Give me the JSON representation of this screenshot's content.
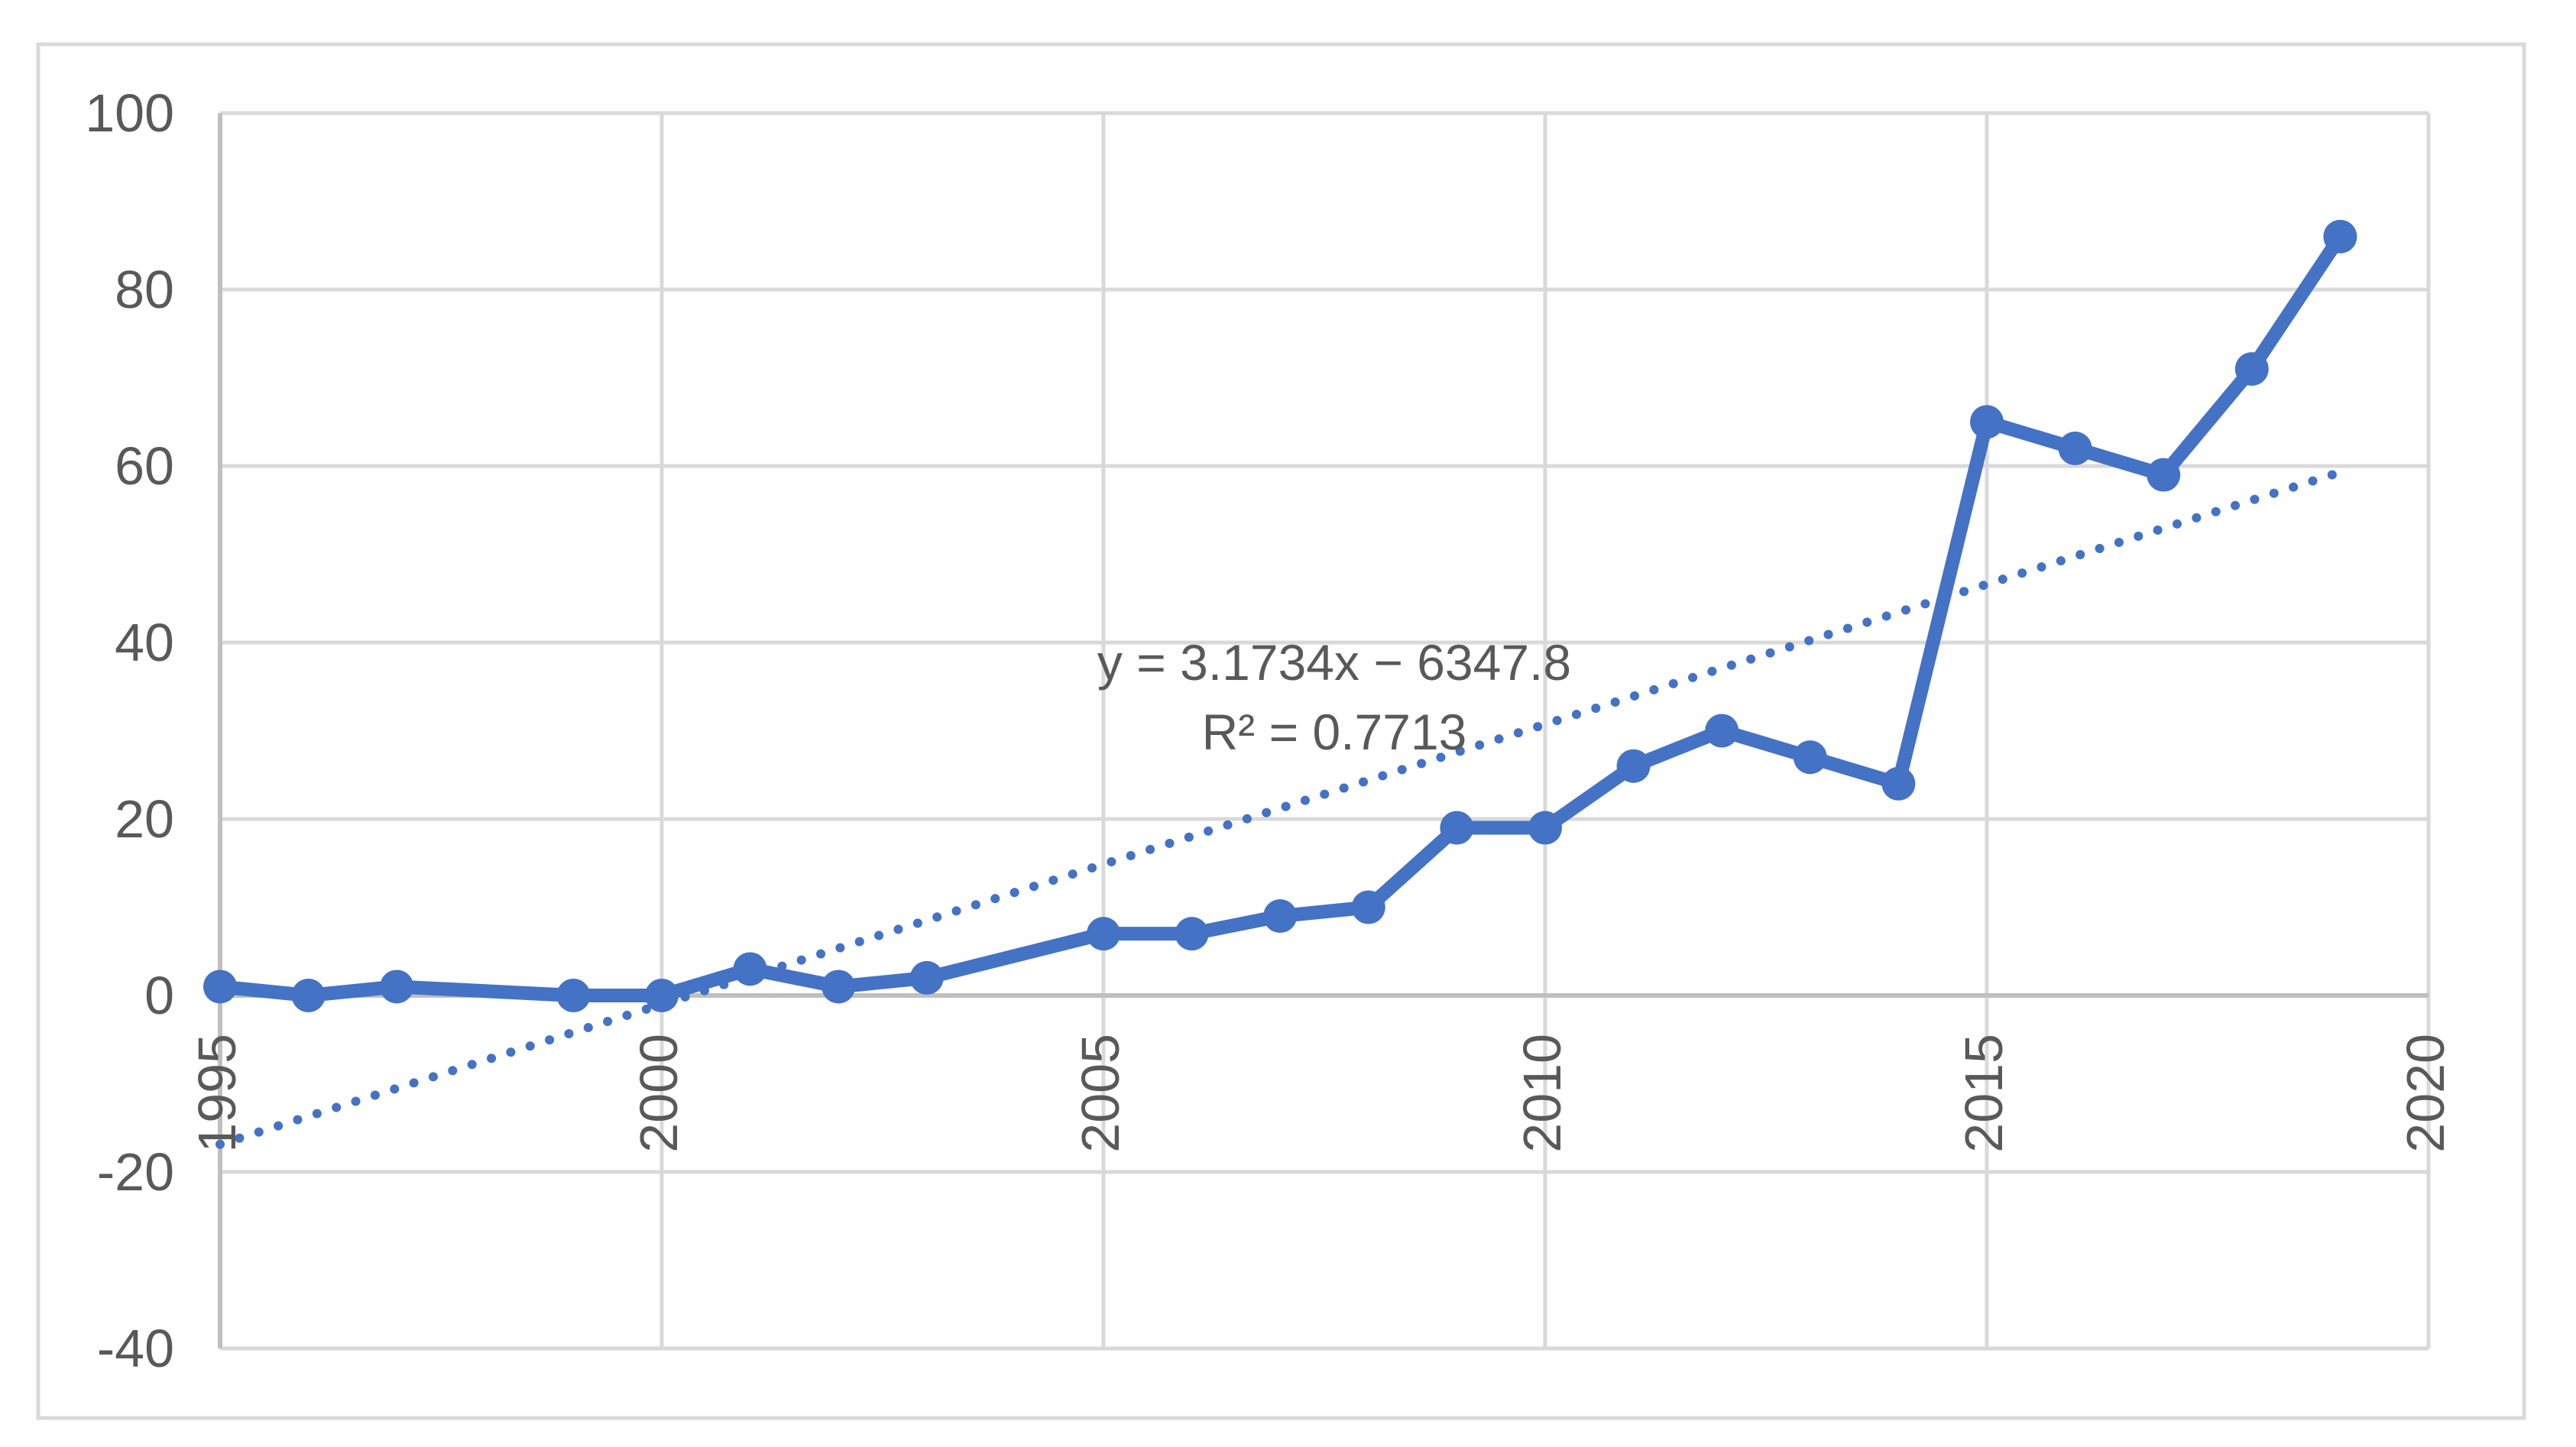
{
  "chart_data": {
    "type": "line",
    "title": "",
    "xlabel": "",
    "ylabel": "",
    "legend": "none",
    "grid": true,
    "x": [
      1995,
      1996,
      1997,
      1998,
      1999,
      2000,
      2001,
      2002,
      2003,
      2004,
      2005,
      2006,
      2007,
      2008,
      2009,
      2010,
      2011,
      2012,
      2013,
      2014,
      2015,
      2016,
      2017,
      2018,
      2019
    ],
    "series": [
      {
        "name": "values",
        "values": [
          1,
          0,
          1,
          null,
          0,
          0,
          3,
          1,
          2,
          null,
          7,
          7,
          9,
          10,
          19,
          19,
          26,
          30,
          27,
          24,
          65,
          62,
          59,
          71,
          86
        ],
        "gap_years_connected_by_line": [
          1998,
          2004
        ],
        "marker": "circle"
      }
    ],
    "xlim": [
      1995,
      2020
    ],
    "ylim": [
      -40,
      100
    ],
    "x_ticks": [
      1995,
      2000,
      2005,
      2010,
      2015,
      2020
    ],
    "y_ticks": [
      100,
      80,
      60,
      40,
      20,
      0,
      -20,
      -40
    ],
    "x_tick_rotation_degrees": -90,
    "trendline": {
      "type": "linear",
      "style": "dotted",
      "slope": 3.1734,
      "intercept": -6347.8,
      "x_range": [
        1995,
        2019
      ],
      "equation_label": "y = 3.1734x − 6347.8",
      "r_squared_label": "R² = 0.7713"
    },
    "colors": {
      "series": "#4472C4",
      "trendline": "#4472C4",
      "gridline": "#D9D9D9",
      "axis_line": "#BFBFBF",
      "tick_text": "#595959",
      "annotation_text": "#595959",
      "chart_border": "#D9D9D9",
      "background": "#FFFFFF"
    }
  }
}
